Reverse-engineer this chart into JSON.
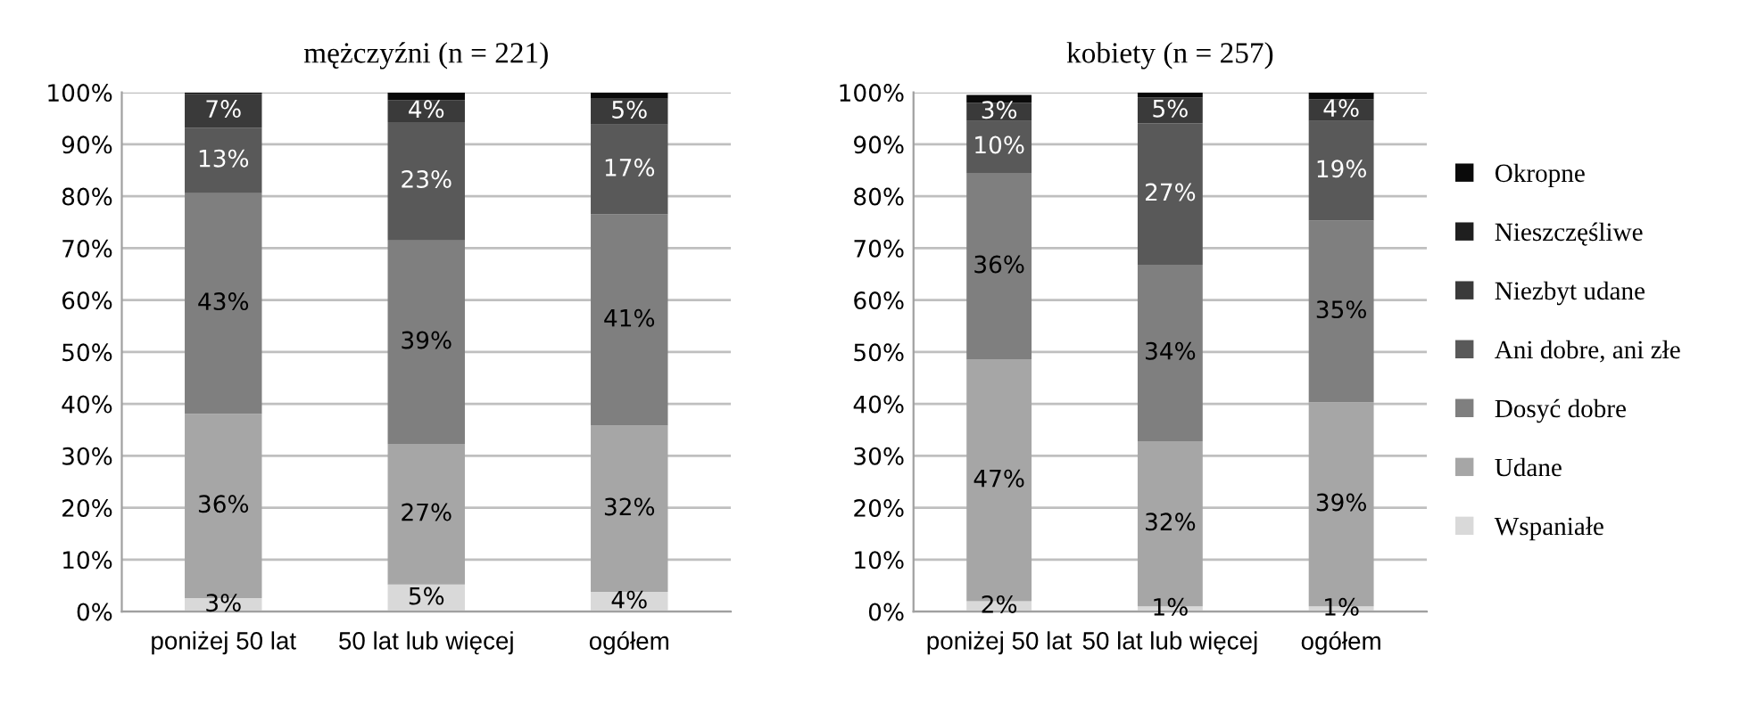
{
  "chart_data": [
    {
      "type": "bar",
      "stacked": true,
      "title": "mężczyźni (n = 221)",
      "categories": [
        "poniżej 50 lat",
        "50 lat lub więcej",
        "ogółem"
      ],
      "ylim": [
        0,
        100
      ],
      "yticks": [
        {
          "value": 0,
          "label": "0%"
        },
        {
          "value": 10,
          "label": "10%"
        },
        {
          "value": 20,
          "label": "20%"
        },
        {
          "value": 30,
          "label": "30%"
        },
        {
          "value": 40,
          "label": "40%"
        },
        {
          "value": 50,
          "label": "50%"
        },
        {
          "value": 60,
          "label": "60%"
        },
        {
          "value": 70,
          "label": "70%"
        },
        {
          "value": 80,
          "label": "80%"
        },
        {
          "value": 90,
          "label": "90%"
        },
        {
          "value": 100,
          "label": "100%"
        }
      ],
      "grid": "y",
      "series": [
        {
          "color": "#d9d9d9",
          "values": [
            2.6,
            5.2,
            3.8
          ],
          "value_labels": [
            "3%",
            "5%",
            "4%"
          ]
        },
        {
          "color": "#a6a6a6",
          "values": [
            35.5,
            27.1,
            32
          ],
          "value_labels": [
            "36%",
            "27%",
            "32%"
          ]
        },
        {
          "color": "#7f7f7f",
          "values": [
            42.5,
            39.2,
            40.7
          ],
          "value_labels": [
            "43%",
            "39%",
            "41%"
          ]
        },
        {
          "color": "#595959",
          "values": [
            12.6,
            22.8,
            17.3
          ],
          "value_labels": [
            "13%",
            "23%",
            "17%"
          ]
        },
        {
          "color": "#3a3a3a",
          "values": [
            6.5,
            4.2,
            5
          ],
          "value_labels": [
            "7%",
            "4%",
            "5%"
          ]
        },
        {
          "color": "#1f1f1f",
          "values": [
            null,
            null,
            null
          ]
        },
        {
          "color": "#0a0a0a",
          "values": [
            0.3,
            1.5,
            1.2
          ]
        }
      ]
    },
    {
      "type": "bar",
      "stacked": true,
      "title": "kobiety (n = 257)",
      "categories": [
        "poniżej 50 lat",
        "50 lat lub więcej",
        "ogółem"
      ],
      "ylim": [
        0,
        100
      ],
      "yticks": [
        {
          "value": 0,
          "label": "0%"
        },
        {
          "value": 10,
          "label": "10%"
        },
        {
          "value": 20,
          "label": "20%"
        },
        {
          "value": 30,
          "label": "30%"
        },
        {
          "value": 40,
          "label": "40%"
        },
        {
          "value": 50,
          "label": "50%"
        },
        {
          "value": 60,
          "label": "60%"
        },
        {
          "value": 70,
          "label": "70%"
        },
        {
          "value": 80,
          "label": "80%"
        },
        {
          "value": 90,
          "label": "90%"
        },
        {
          "value": 100,
          "label": "100%"
        }
      ],
      "grid": "y",
      "legend": "right",
      "series": [
        {
          "name": "Wspaniałe",
          "color": "#d9d9d9",
          "values": [
            2,
            1,
            1
          ],
          "value_labels": [
            "2%",
            "1%",
            "1%"
          ]
        },
        {
          "name": "Udane",
          "color": "#a6a6a6",
          "values": [
            46.5,
            31.8,
            39.3
          ],
          "value_labels": [
            "47%",
            "32%",
            "39%"
          ]
        },
        {
          "name": "Dosyć dobre",
          "color": "#7f7f7f",
          "values": [
            36,
            34,
            35
          ],
          "value_labels": [
            "36%",
            "34%",
            "35%"
          ]
        },
        {
          "name": "Ani dobre, ani złe",
          "color": "#595959",
          "values": [
            10,
            27.2,
            19.2
          ],
          "value_labels": [
            "10%",
            "27%",
            "19%"
          ]
        },
        {
          "name": "Niezbyt udane",
          "color": "#3a3a3a",
          "values": [
            3.5,
            5,
            4.2
          ],
          "value_labels": [
            "3%",
            "5%",
            "4%"
          ]
        },
        {
          "name": "Nieszczęśliwe",
          "color": "#1f1f1f",
          "values": [
            null,
            null,
            null
          ]
        },
        {
          "name": "Okropne",
          "color": "#0a0a0a",
          "values": [
            1.5,
            1,
            1.3
          ]
        }
      ]
    }
  ]
}
